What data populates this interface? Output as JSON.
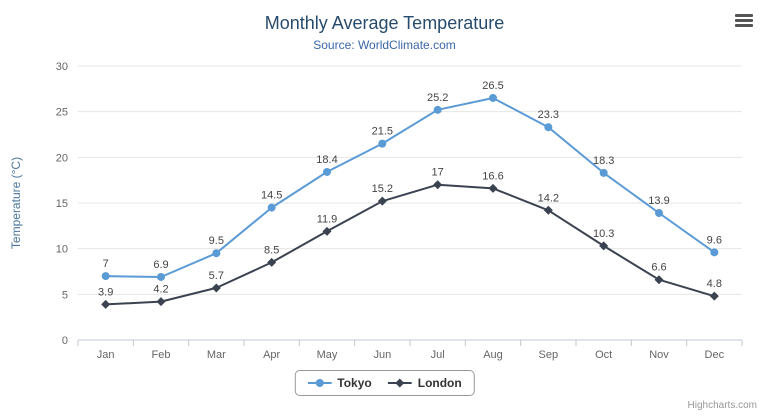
{
  "colors": {
    "title_color": "#274b6d",
    "subtitle_color": "#3a66a7",
    "axis_title_color": "#4d759e",
    "tick_label_color": "#666666",
    "data_label_color": "#444444",
    "grid_color": "#e6e6e6",
    "axis_line_color": "#c0c8d4",
    "legend_border_color": "#999999",
    "credits_color": "#999999",
    "menu_icon_color": "#555555"
  },
  "menu": {
    "icon": "hamburger-menu-icon"
  },
  "credits": {
    "label": "Highcharts.com"
  },
  "chart_data": {
    "type": "line",
    "title": "Monthly Average Temperature",
    "subtitle": "Source: WorldClimate.com",
    "xlabel": "",
    "ylabel": "Temperature (°C)",
    "ylim": [
      0,
      30
    ],
    "yticks": [
      0,
      5,
      10,
      15,
      20,
      25,
      30
    ],
    "grid": true,
    "legend_position": "bottom",
    "categories": [
      "Jan",
      "Feb",
      "Mar",
      "Apr",
      "May",
      "Jun",
      "Jul",
      "Aug",
      "Sep",
      "Oct",
      "Nov",
      "Dec"
    ],
    "series": [
      {
        "name": "Tokyo",
        "color": "#5b9bd5",
        "marker": "circle",
        "values": [
          7,
          6.9,
          9.5,
          14.5,
          18.4,
          21.5,
          25.2,
          26.5,
          23.3,
          18.3,
          13.9,
          9.6
        ]
      },
      {
        "name": "London",
        "color": "#3b4250",
        "marker": "diamond",
        "values": [
          3.9,
          4.2,
          5.7,
          8.5,
          11.9,
          15.2,
          17,
          16.6,
          14.2,
          10.3,
          6.6,
          4.8
        ]
      }
    ]
  }
}
